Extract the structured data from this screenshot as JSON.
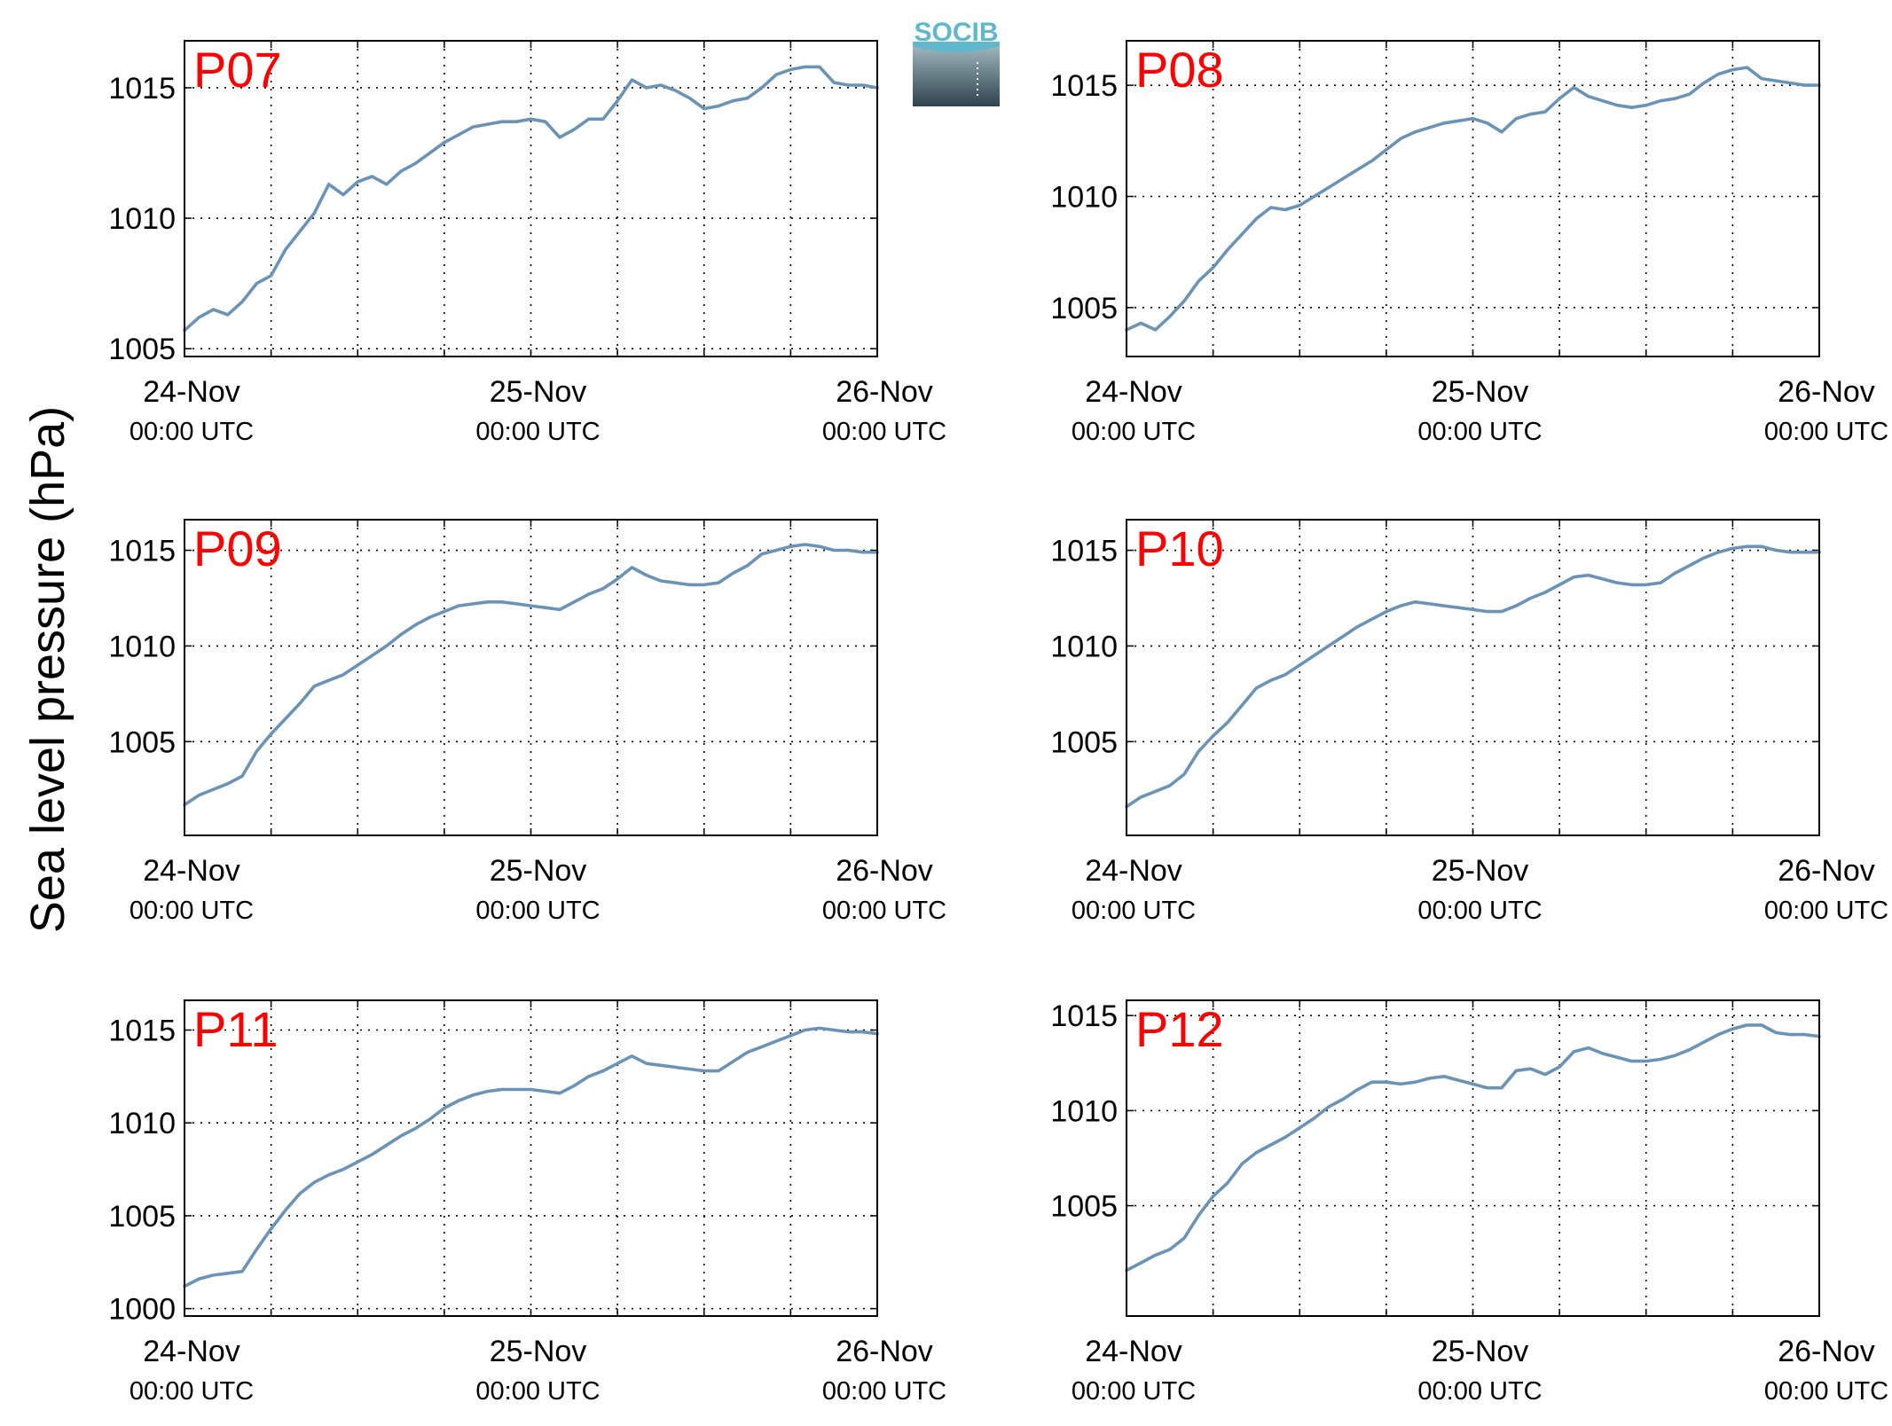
{
  "figure": {
    "ylabel": "Sea level pressure (hPa)",
    "logo_text": "SOCIB"
  },
  "colors": {
    "line": "#6b93b6",
    "panel_label": "#ff0000",
    "axis": "#000000",
    "grid": "#000000",
    "logo_text": "#5fb8cc",
    "logo_top": "#9fb5bd",
    "logo_bottom": "#2e434d"
  },
  "chart_data": [
    {
      "type": "line",
      "label": "P07",
      "x_ticks": [
        {
          "date": "24-Nov",
          "time": "00:00 UTC"
        },
        {
          "date": "25-Nov",
          "time": "00:00 UTC"
        },
        {
          "date": "26-Nov",
          "time": "00:00 UTC"
        }
      ],
      "xlim_hours": [
        0,
        48
      ],
      "ylim": [
        1004.7,
        1016.8
      ],
      "y_ticks": [
        1005,
        1010,
        1015
      ],
      "grid": true,
      "series": [
        {
          "x": [
            0,
            1,
            2,
            3,
            4,
            5,
            6,
            7,
            8,
            9,
            10,
            11,
            12,
            13,
            14,
            15,
            16,
            17,
            18,
            19,
            20,
            21,
            22,
            23,
            24,
            25,
            26,
            27,
            28,
            29,
            30,
            31,
            32,
            33,
            34,
            35,
            36,
            37,
            38,
            39,
            40,
            41,
            42,
            43,
            44,
            45,
            46,
            47,
            48
          ],
          "y": [
            1005.7,
            1006.2,
            1006.5,
            1006.3,
            1006.8,
            1007.5,
            1007.8,
            1008.8,
            1009.5,
            1010.2,
            1011.3,
            1010.9,
            1011.4,
            1011.6,
            1011.3,
            1011.8,
            1012.1,
            1012.5,
            1012.9,
            1013.2,
            1013.5,
            1013.6,
            1013.7,
            1013.7,
            1013.8,
            1013.7,
            1013.1,
            1013.4,
            1013.8,
            1013.8,
            1014.5,
            1015.3,
            1015.0,
            1015.1,
            1014.9,
            1014.6,
            1014.2,
            1014.3,
            1014.5,
            1014.6,
            1015.0,
            1015.5,
            1015.7,
            1015.8,
            1015.8,
            1015.2,
            1015.1,
            1015.1,
            1015.0
          ]
        }
      ]
    },
    {
      "type": "line",
      "label": "P08",
      "x_ticks": [
        {
          "date": "24-Nov",
          "time": "00:00 UTC"
        },
        {
          "date": "25-Nov",
          "time": "00:00 UTC"
        },
        {
          "date": "26-Nov",
          "time": "00:00 UTC"
        }
      ],
      "xlim_hours": [
        0,
        48
      ],
      "ylim": [
        1002.8,
        1017.0
      ],
      "y_ticks": [
        1005,
        1010,
        1015
      ],
      "grid": true,
      "series": [
        {
          "x": [
            0,
            1,
            2,
            3,
            4,
            5,
            6,
            7,
            8,
            9,
            10,
            11,
            12,
            13,
            14,
            15,
            16,
            17,
            18,
            19,
            20,
            21,
            22,
            23,
            24,
            25,
            26,
            27,
            28,
            29,
            30,
            31,
            32,
            33,
            34,
            35,
            36,
            37,
            38,
            39,
            40,
            41,
            42,
            43,
            44,
            45,
            46,
            47,
            48
          ],
          "y": [
            1004.0,
            1004.3,
            1004.0,
            1004.6,
            1005.3,
            1006.2,
            1006.8,
            1007.6,
            1008.3,
            1009.0,
            1009.5,
            1009.4,
            1009.6,
            1010.0,
            1010.4,
            1010.8,
            1011.2,
            1011.6,
            1012.1,
            1012.6,
            1012.9,
            1013.1,
            1013.3,
            1013.4,
            1013.5,
            1013.3,
            1012.9,
            1013.5,
            1013.7,
            1013.8,
            1014.4,
            1014.9,
            1014.5,
            1014.3,
            1014.1,
            1014.0,
            1014.1,
            1014.3,
            1014.4,
            1014.6,
            1015.1,
            1015.5,
            1015.7,
            1015.8,
            1015.3,
            1015.2,
            1015.1,
            1015.0,
            1015.0
          ]
        }
      ]
    },
    {
      "type": "line",
      "label": "P09",
      "x_ticks": [
        {
          "date": "24-Nov",
          "time": "00:00 UTC"
        },
        {
          "date": "25-Nov",
          "time": "00:00 UTC"
        },
        {
          "date": "26-Nov",
          "time": "00:00 UTC"
        }
      ],
      "xlim_hours": [
        0,
        48
      ],
      "ylim": [
        1000.1,
        1016.6
      ],
      "y_ticks": [
        1005,
        1010,
        1015
      ],
      "grid": true,
      "series": [
        {
          "x": [
            0,
            1,
            2,
            3,
            4,
            5,
            6,
            7,
            8,
            9,
            10,
            11,
            12,
            13,
            14,
            15,
            16,
            17,
            18,
            19,
            20,
            21,
            22,
            23,
            24,
            25,
            26,
            27,
            28,
            29,
            30,
            31,
            32,
            33,
            34,
            35,
            36,
            37,
            38,
            39,
            40,
            41,
            42,
            43,
            44,
            45,
            46,
            47,
            48
          ],
          "y": [
            1001.7,
            1002.2,
            1002.5,
            1002.8,
            1003.2,
            1004.5,
            1005.4,
            1006.2,
            1007.0,
            1007.9,
            1008.2,
            1008.5,
            1009.0,
            1009.5,
            1010.0,
            1010.6,
            1011.1,
            1011.5,
            1011.8,
            1012.1,
            1012.2,
            1012.3,
            1012.3,
            1012.2,
            1012.1,
            1012.0,
            1011.9,
            1012.3,
            1012.7,
            1013.0,
            1013.5,
            1014.1,
            1013.7,
            1013.4,
            1013.3,
            1013.2,
            1013.2,
            1013.3,
            1013.8,
            1014.2,
            1014.8,
            1015.0,
            1015.2,
            1015.3,
            1015.2,
            1015.0,
            1015.0,
            1014.9,
            1014.9
          ]
        }
      ]
    },
    {
      "type": "line",
      "label": "P10",
      "x_ticks": [
        {
          "date": "24-Nov",
          "time": "00:00 UTC"
        },
        {
          "date": "25-Nov",
          "time": "00:00 UTC"
        },
        {
          "date": "26-Nov",
          "time": "00:00 UTC"
        }
      ],
      "xlim_hours": [
        0,
        48
      ],
      "ylim": [
        1000.1,
        1016.6
      ],
      "y_ticks": [
        1005,
        1010,
        1015
      ],
      "grid": true,
      "series": [
        {
          "x": [
            0,
            1,
            2,
            3,
            4,
            5,
            6,
            7,
            8,
            9,
            10,
            11,
            12,
            13,
            14,
            15,
            16,
            17,
            18,
            19,
            20,
            21,
            22,
            23,
            24,
            25,
            26,
            27,
            28,
            29,
            30,
            31,
            32,
            33,
            34,
            35,
            36,
            37,
            38,
            39,
            40,
            41,
            42,
            43,
            44,
            45,
            46,
            47,
            48
          ],
          "y": [
            1001.6,
            1002.1,
            1002.4,
            1002.7,
            1003.3,
            1004.5,
            1005.3,
            1006.0,
            1006.9,
            1007.8,
            1008.2,
            1008.5,
            1009.0,
            1009.5,
            1010.0,
            1010.5,
            1011.0,
            1011.4,
            1011.8,
            1012.1,
            1012.3,
            1012.2,
            1012.1,
            1012.0,
            1011.9,
            1011.8,
            1011.8,
            1012.1,
            1012.5,
            1012.8,
            1013.2,
            1013.6,
            1013.7,
            1013.5,
            1013.3,
            1013.2,
            1013.2,
            1013.3,
            1013.8,
            1014.2,
            1014.6,
            1014.9,
            1015.1,
            1015.2,
            1015.2,
            1015.0,
            1014.9,
            1014.9,
            1014.9
          ]
        }
      ]
    },
    {
      "type": "line",
      "label": "P11",
      "x_ticks": [
        {
          "date": "24-Nov",
          "time": "00:00 UTC"
        },
        {
          "date": "25-Nov",
          "time": "00:00 UTC"
        },
        {
          "date": "26-Nov",
          "time": "00:00 UTC"
        }
      ],
      "xlim_hours": [
        0,
        48
      ],
      "ylim": [
        999.6,
        1016.6
      ],
      "y_ticks": [
        1000,
        1005,
        1010,
        1015
      ],
      "grid": true,
      "series": [
        {
          "x": [
            0,
            1,
            2,
            3,
            4,
            5,
            6,
            7,
            8,
            9,
            10,
            11,
            12,
            13,
            14,
            15,
            16,
            17,
            18,
            19,
            20,
            21,
            22,
            23,
            24,
            25,
            26,
            27,
            28,
            29,
            30,
            31,
            32,
            33,
            34,
            35,
            36,
            37,
            38,
            39,
            40,
            41,
            42,
            43,
            44,
            45,
            46,
            47,
            48
          ],
          "y": [
            1001.2,
            1001.6,
            1001.8,
            1001.9,
            1002.0,
            1003.2,
            1004.3,
            1005.3,
            1006.2,
            1006.8,
            1007.2,
            1007.5,
            1007.9,
            1008.3,
            1008.8,
            1009.3,
            1009.7,
            1010.2,
            1010.8,
            1011.2,
            1011.5,
            1011.7,
            1011.8,
            1011.8,
            1011.8,
            1011.7,
            1011.6,
            1012.0,
            1012.5,
            1012.8,
            1013.2,
            1013.6,
            1013.2,
            1013.1,
            1013.0,
            1012.9,
            1012.8,
            1012.8,
            1013.3,
            1013.8,
            1014.1,
            1014.4,
            1014.7,
            1015.0,
            1015.1,
            1015.0,
            1014.9,
            1014.9,
            1014.8
          ]
        }
      ]
    },
    {
      "type": "line",
      "label": "P12",
      "x_ticks": [
        {
          "date": "24-Nov",
          "time": "00:00 UTC"
        },
        {
          "date": "25-Nov",
          "time": "00:00 UTC"
        },
        {
          "date": "26-Nov",
          "time": "00:00 UTC"
        }
      ],
      "xlim_hours": [
        0,
        48
      ],
      "ylim": [
        999.2,
        1015.8
      ],
      "y_ticks": [
        1005,
        1010,
        1015
      ],
      "grid": true,
      "series": [
        {
          "x": [
            0,
            1,
            2,
            3,
            4,
            5,
            6,
            7,
            8,
            9,
            10,
            11,
            12,
            13,
            14,
            15,
            16,
            17,
            18,
            19,
            20,
            21,
            22,
            23,
            24,
            25,
            26,
            27,
            28,
            29,
            30,
            31,
            32,
            33,
            34,
            35,
            36,
            37,
            38,
            39,
            40,
            41,
            42,
            43,
            44,
            45,
            46,
            47,
            48
          ],
          "y": [
            1001.6,
            1002.0,
            1002.4,
            1002.7,
            1003.3,
            1004.5,
            1005.5,
            1006.2,
            1007.2,
            1007.8,
            1008.2,
            1008.6,
            1009.1,
            1009.6,
            1010.2,
            1010.6,
            1011.1,
            1011.5,
            1011.5,
            1011.4,
            1011.5,
            1011.7,
            1011.8,
            1011.6,
            1011.4,
            1011.2,
            1011.2,
            1012.1,
            1012.2,
            1011.9,
            1012.3,
            1013.1,
            1013.3,
            1013.0,
            1012.8,
            1012.6,
            1012.6,
            1012.7,
            1012.9,
            1013.2,
            1013.6,
            1014.0,
            1014.3,
            1014.5,
            1014.5,
            1014.1,
            1014.0,
            1014.0,
            1013.9
          ]
        }
      ]
    }
  ]
}
